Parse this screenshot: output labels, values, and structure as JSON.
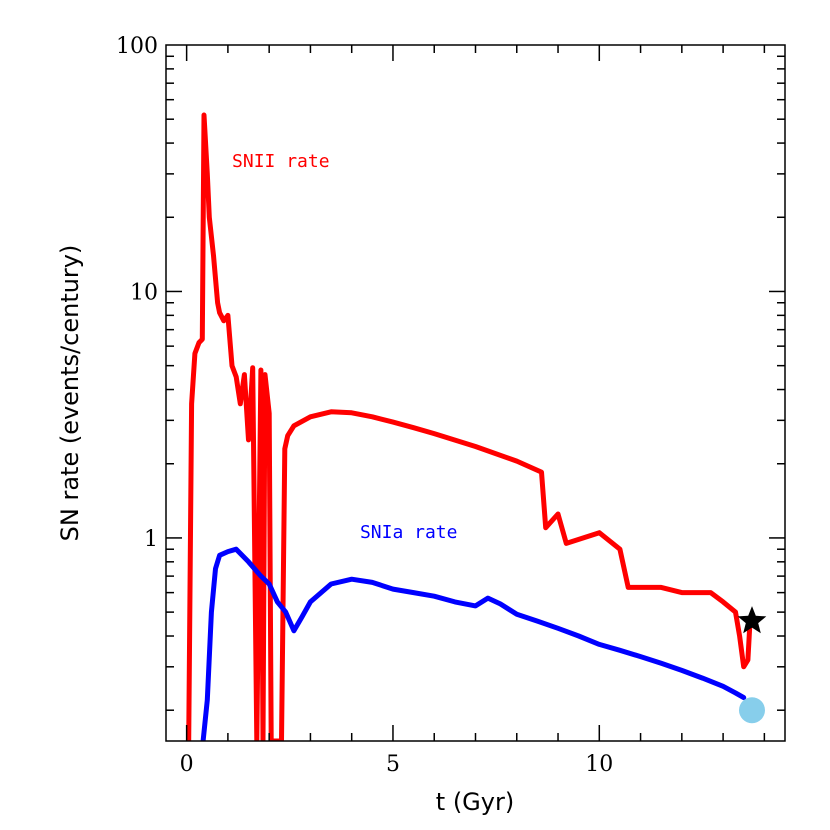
{
  "chart_data": {
    "type": "line",
    "title": "",
    "xlabel": "t (Gyr)",
    "ylabel": "SN rate (events/century)",
    "xlim": [
      -0.5,
      14.5
    ],
    "ylim": [
      0.15,
      100
    ],
    "yscale": "log",
    "x_ticks": [
      {
        "value": 0,
        "label": "0"
      },
      {
        "value": 5,
        "label": "5"
      },
      {
        "value": 10,
        "label": "10"
      }
    ],
    "y_ticks": [
      {
        "value": 1,
        "label": "1"
      },
      {
        "value": 10,
        "label": "10"
      },
      {
        "value": 100,
        "label": "100"
      }
    ],
    "grid": false,
    "series": [
      {
        "name": "SNII rate",
        "color": "#ff0000",
        "x": [
          0.05,
          0.12,
          0.2,
          0.3,
          0.38,
          0.42,
          0.5,
          0.55,
          0.65,
          0.75,
          0.8,
          0.9,
          1.0,
          1.1,
          1.2,
          1.3,
          1.4,
          1.5,
          1.6,
          1.7,
          1.8,
          1.85,
          1.9,
          2.0,
          2.05,
          2.3,
          2.38,
          2.45,
          2.6,
          3.0,
          3.5,
          4.0,
          4.5,
          5.0,
          5.5,
          6.0,
          7.0,
          8.0,
          8.6,
          8.7,
          9.0,
          9.2,
          10.0,
          10.5,
          10.7,
          11.5,
          12.0,
          12.5,
          12.7,
          13.0,
          13.3,
          13.4,
          13.5,
          13.6,
          13.65
        ],
        "y": [
          0.15,
          3.5,
          5.6,
          6.2,
          6.4,
          52,
          30,
          20,
          14,
          9.0,
          8.2,
          7.6,
          8.0,
          5.0,
          4.5,
          3.5,
          4.6,
          2.5,
          4.9,
          0.15,
          4.8,
          0.15,
          4.6,
          3.2,
          0.15,
          0.15,
          2.3,
          2.6,
          2.85,
          3.1,
          3.25,
          3.22,
          3.1,
          2.95,
          2.8,
          2.65,
          2.35,
          2.05,
          1.85,
          1.1,
          1.25,
          0.95,
          1.05,
          0.9,
          0.63,
          0.63,
          0.6,
          0.6,
          0.6,
          0.55,
          0.5,
          0.4,
          0.3,
          0.32,
          0.45
        ]
      },
      {
        "name": "SNIa rate",
        "color": "#0000ff",
        "x": [
          0.4,
          0.5,
          0.6,
          0.7,
          0.8,
          1.0,
          1.2,
          1.5,
          1.8,
          2.0,
          2.2,
          2.4,
          2.6,
          2.8,
          3.0,
          3.5,
          4.0,
          4.5,
          5.0,
          5.5,
          6.0,
          6.5,
          7.0,
          7.3,
          7.6,
          8.0,
          8.5,
          9.0,
          9.5,
          10.0,
          10.5,
          11.0,
          11.5,
          12.0,
          12.5,
          13.0,
          13.3,
          13.5
        ],
        "y": [
          0.15,
          0.22,
          0.5,
          0.75,
          0.85,
          0.88,
          0.9,
          0.8,
          0.7,
          0.65,
          0.55,
          0.5,
          0.42,
          0.48,
          0.55,
          0.65,
          0.68,
          0.66,
          0.62,
          0.6,
          0.58,
          0.55,
          0.53,
          0.57,
          0.54,
          0.49,
          0.46,
          0.43,
          0.4,
          0.37,
          0.35,
          0.33,
          0.31,
          0.29,
          0.27,
          0.25,
          0.235,
          0.225
        ]
      }
    ],
    "annotations": [
      {
        "text": "SNII rate",
        "x": 1.1,
        "y": 32,
        "color": "#ff0000"
      },
      {
        "text": "SNIa rate",
        "x": 4.2,
        "y": 1.0,
        "color": "#0000ff"
      }
    ],
    "markers": [
      {
        "shape": "star",
        "x": 13.7,
        "y": 0.46,
        "color": "#000000"
      },
      {
        "shape": "circle",
        "x": 13.7,
        "y": 0.2,
        "color": "#87ceeb"
      }
    ]
  }
}
